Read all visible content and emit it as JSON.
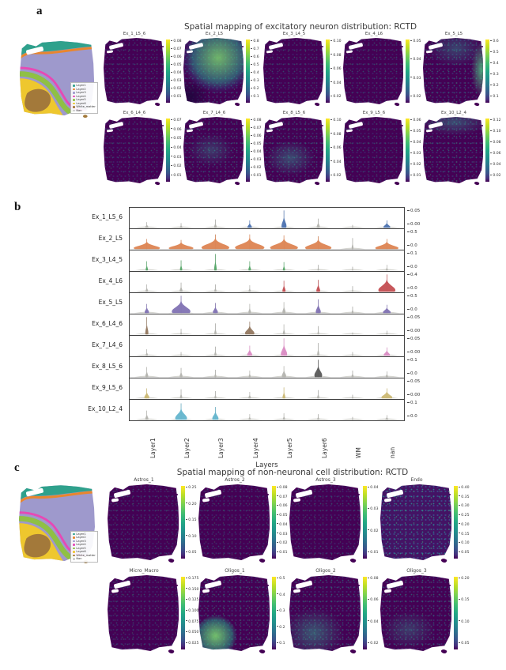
{
  "labels": {
    "panel_a": "a",
    "panel_b": "b",
    "panel_c": "c"
  },
  "chart_data": [
    {
      "panel": "a",
      "type": "scatter",
      "subtype": "spatial-spot-maps",
      "title": "Spatial mapping of excitatory neuron distribution: RCTD",
      "colormap": "viridis",
      "reference_legend": {
        "items": [
          {
            "label": "Layer1",
            "color": "#2fa18c"
          },
          {
            "label": "Layer2",
            "color": "#e8862e"
          },
          {
            "label": "Layer3",
            "color": "#9e99cc"
          },
          {
            "label": "Layer4",
            "color": "#e649b5"
          },
          {
            "label": "Layer5",
            "color": "#8fc045"
          },
          {
            "label": "Layer6",
            "color": "#eec72e"
          },
          {
            "label": "White_matter",
            "color": "#a3793a"
          },
          {
            "label": "Nan",
            "color": "#cccccc"
          }
        ]
      },
      "maps": [
        {
          "title": "Ex_1_L5_6",
          "colorbar_ticks": [
            "0.08",
            "0.07",
            "0.06",
            "0.05",
            "0.04",
            "0.03",
            "0.02",
            "0.01"
          ],
          "pattern": "sparse"
        },
        {
          "title": "Ex_2_L5",
          "colorbar_ticks": [
            "0.8",
            "0.7",
            "0.6",
            "0.5",
            "0.4",
            "0.3",
            "0.2",
            "0.1"
          ],
          "pattern": "high-upper"
        },
        {
          "title": "Ex_3_L4_5",
          "colorbar_ticks": [
            "0.10",
            "0.08",
            "0.06",
            "0.04",
            "0.02"
          ],
          "pattern": "sparse"
        },
        {
          "title": "Ex_4_L6",
          "colorbar_ticks": [
            "0.05",
            "0.04",
            "0.03",
            "0.02"
          ],
          "pattern": "sparse"
        },
        {
          "title": "Ex_5_L5",
          "colorbar_ticks": [
            "0.6",
            "0.5",
            "0.4",
            "0.3",
            "0.2",
            "0.1"
          ],
          "pattern": "edge-right"
        },
        {
          "title": "Ex_6_L4_6",
          "colorbar_ticks": [
            "0.07",
            "0.06",
            "0.05",
            "0.04",
            "0.03",
            "0.02",
            "0.01"
          ],
          "pattern": "sparse"
        },
        {
          "title": "Ex_7_L4_6",
          "colorbar_ticks": [
            "0.08",
            "0.07",
            "0.06",
            "0.05",
            "0.04",
            "0.03",
            "0.02",
            "0.01"
          ],
          "pattern": "sparse-mid"
        },
        {
          "title": "Ex_8_L5_6",
          "colorbar_ticks": [
            "0.10",
            "0.08",
            "0.06",
            "0.04",
            "0.02"
          ],
          "pattern": "center-band"
        },
        {
          "title": "Ex_9_L5_6",
          "colorbar_ticks": [
            "0.06",
            "0.05",
            "0.04",
            "0.03",
            "0.02",
            "0.01"
          ],
          "pattern": "sparse"
        },
        {
          "title": "Ex_10_L2_4",
          "colorbar_ticks": [
            "0.12",
            "0.10",
            "0.08",
            "0.06",
            "0.04",
            "0.02"
          ],
          "pattern": "sparse-top"
        }
      ]
    },
    {
      "panel": "b",
      "type": "violin",
      "xlabel": "Layers",
      "categories": [
        "Layer1",
        "Layer2",
        "Layer3",
        "Layer4",
        "Layer5",
        "Layer6",
        "WM",
        "nan"
      ],
      "rows": [
        {
          "name": "Ex_1_L5_6",
          "color": "#4c72b0",
          "yticks": [
            "0.05",
            "0.00"
          ],
          "heights": [
            0.3,
            0.25,
            0.45,
            0.4,
            0.95,
            0.5,
            0.15,
            0.4
          ],
          "widths": [
            0.1,
            0.08,
            0.08,
            0.14,
            0.16,
            0.1,
            0.05,
            0.22
          ],
          "colored": [
            0,
            0,
            0,
            1,
            1,
            0,
            0,
            1
          ]
        },
        {
          "name": "Ex_2_L5",
          "color": "#dd8452",
          "yticks": [
            "0.5",
            "0.0"
          ],
          "heights": [
            0.55,
            0.5,
            0.8,
            0.8,
            0.75,
            0.7,
            0.6,
            0.55
          ],
          "widths": [
            0.85,
            0.8,
            0.9,
            0.95,
            0.9,
            0.85,
            0.06,
            0.75
          ],
          "colored": [
            1,
            1,
            1,
            1,
            1,
            1,
            0,
            1
          ]
        },
        {
          "name": "Ex_3_L4_5",
          "color": "#55a868",
          "yticks": [
            "0.1",
            "0.0"
          ],
          "heights": [
            0.5,
            0.55,
            0.9,
            0.5,
            0.45,
            0.3,
            0.2,
            0.3
          ],
          "widths": [
            0.07,
            0.07,
            0.08,
            0.08,
            0.07,
            0.05,
            0.04,
            0.06
          ],
          "colored": [
            1,
            1,
            1,
            1,
            1,
            0,
            0,
            0
          ]
        },
        {
          "name": "Ex_4_L6",
          "color": "#c44e52",
          "yticks": [
            "0.4",
            "0.0"
          ],
          "heights": [
            0.4,
            0.5,
            0.4,
            0.35,
            0.6,
            0.65,
            0.3,
            0.95
          ],
          "widths": [
            0.08,
            0.09,
            0.07,
            0.07,
            0.1,
            0.12,
            0.05,
            0.55
          ],
          "colored": [
            0,
            0,
            0,
            0,
            1,
            1,
            0,
            1
          ]
        },
        {
          "name": "Ex_5_L5",
          "color": "#8172b3",
          "yticks": [
            "0.5",
            "0.0"
          ],
          "heights": [
            0.5,
            0.95,
            0.55,
            0.5,
            0.6,
            0.75,
            0.35,
            0.45
          ],
          "widths": [
            0.14,
            0.6,
            0.16,
            0.08,
            0.1,
            0.16,
            0.06,
            0.25
          ],
          "colored": [
            1,
            1,
            1,
            0,
            0,
            1,
            0,
            1
          ]
        },
        {
          "name": "Ex_6_L4_6",
          "color": "#937860",
          "yticks": [
            "0.05",
            "0.00"
          ],
          "heights": [
            0.95,
            0.3,
            0.6,
            0.7,
            0.55,
            0.45,
            0.1,
            0.2
          ],
          "widths": [
            0.1,
            0.05,
            0.07,
            0.3,
            0.07,
            0.05,
            0.04,
            0.06
          ],
          "colored": [
            1,
            0,
            0,
            1,
            0,
            0,
            0,
            0
          ]
        },
        {
          "name": "Ex_7_L4_6",
          "color": "#da8bc3",
          "yticks": [
            "0.05",
            "0.00"
          ],
          "heights": [
            0.35,
            0.2,
            0.5,
            0.55,
            0.95,
            0.7,
            0.2,
            0.45
          ],
          "widths": [
            0.07,
            0.05,
            0.07,
            0.16,
            0.2,
            0.07,
            0.05,
            0.2
          ],
          "colored": [
            0,
            0,
            0,
            1,
            1,
            0,
            0,
            1
          ]
        },
        {
          "name": "Ex_8_L5_6",
          "color": "#595959",
          "yticks": [
            "0.1",
            "0.0"
          ],
          "heights": [
            0.55,
            0.5,
            0.4,
            0.35,
            0.6,
            0.95,
            0.35,
            0.3
          ],
          "widths": [
            0.09,
            0.09,
            0.06,
            0.06,
            0.14,
            0.25,
            0.07,
            0.07
          ],
          "colored": [
            0,
            0,
            0,
            0,
            0,
            1,
            0,
            0
          ]
        },
        {
          "name": "Ex_9_L5_6",
          "color": "#ccb974",
          "yticks": [
            "0.05",
            "0.00"
          ],
          "heights": [
            0.55,
            0.5,
            0.4,
            0.35,
            0.6,
            0.45,
            0.2,
            0.55
          ],
          "widths": [
            0.16,
            0.07,
            0.06,
            0.08,
            0.09,
            0.07,
            0.05,
            0.35
          ],
          "colored": [
            1,
            0,
            0,
            0,
            1,
            0,
            0,
            1
          ]
        },
        {
          "name": "Ex_10_L2_4",
          "color": "#64b5cd",
          "yticks": [
            "0.1",
            "0.0"
          ],
          "heights": [
            0.5,
            0.9,
            0.7,
            0.3,
            0.35,
            0.3,
            0.15,
            0.25
          ],
          "widths": [
            0.1,
            0.38,
            0.2,
            0.07,
            0.07,
            0.07,
            0.05,
            0.09
          ],
          "colored": [
            0,
            1,
            1,
            0,
            0,
            0,
            0,
            0
          ]
        }
      ]
    },
    {
      "panel": "c",
      "type": "scatter",
      "subtype": "spatial-spot-maps",
      "title": "Spatial mapping of non-neuronal cell distribution: RCTD",
      "colormap": "viridis",
      "reference_legend": {
        "items": [
          {
            "label": "Layer1",
            "color": "#2fa18c"
          },
          {
            "label": "Layer2",
            "color": "#e8862e"
          },
          {
            "label": "Layer3",
            "color": "#9e99cc"
          },
          {
            "label": "Layer4",
            "color": "#e649b5"
          },
          {
            "label": "Layer5",
            "color": "#8fc045"
          },
          {
            "label": "Layer6",
            "color": "#eec72e"
          },
          {
            "label": "White_matter",
            "color": "#a3793a"
          },
          {
            "label": "Nan",
            "color": "#cccccc"
          }
        ]
      },
      "maps": [
        {
          "title": "Astros_1",
          "colorbar_ticks": [
            "0.25",
            "0.20",
            "0.15",
            "0.10",
            "0.05"
          ],
          "pattern": "sparse"
        },
        {
          "title": "Astros_2",
          "colorbar_ticks": [
            "0.08",
            "0.07",
            "0.06",
            "0.05",
            "0.04",
            "0.03",
            "0.02",
            "0.01"
          ],
          "pattern": "sparse"
        },
        {
          "title": "Astros_3",
          "colorbar_ticks": [
            "0.04",
            "0.03",
            "0.02",
            "0.01"
          ],
          "pattern": "sparse"
        },
        {
          "title": "Endo",
          "colorbar_ticks": [
            "0.40",
            "0.35",
            "0.30",
            "0.25",
            "0.20",
            "0.15",
            "0.10",
            "0.05"
          ],
          "pattern": "diffuse"
        },
        {
          "title": "Micro_Macro",
          "colorbar_ticks": [
            "0.175",
            "0.150",
            "0.125",
            "0.100",
            "0.075",
            "0.050",
            "0.025"
          ],
          "pattern": "sparse"
        },
        {
          "title": "Oligos_1",
          "colorbar_ticks": [
            "0.5",
            "0.4",
            "0.3",
            "0.2",
            "0.1"
          ],
          "pattern": "blob-lower-left"
        },
        {
          "title": "Oligos_2",
          "colorbar_ticks": [
            "0.08",
            "0.06",
            "0.04",
            "0.02"
          ],
          "pattern": "lower-band"
        },
        {
          "title": "Oligos_3",
          "colorbar_ticks": [
            "0.20",
            "0.15",
            "0.10",
            "0.05"
          ],
          "pattern": "sparse-lower"
        }
      ]
    }
  ]
}
